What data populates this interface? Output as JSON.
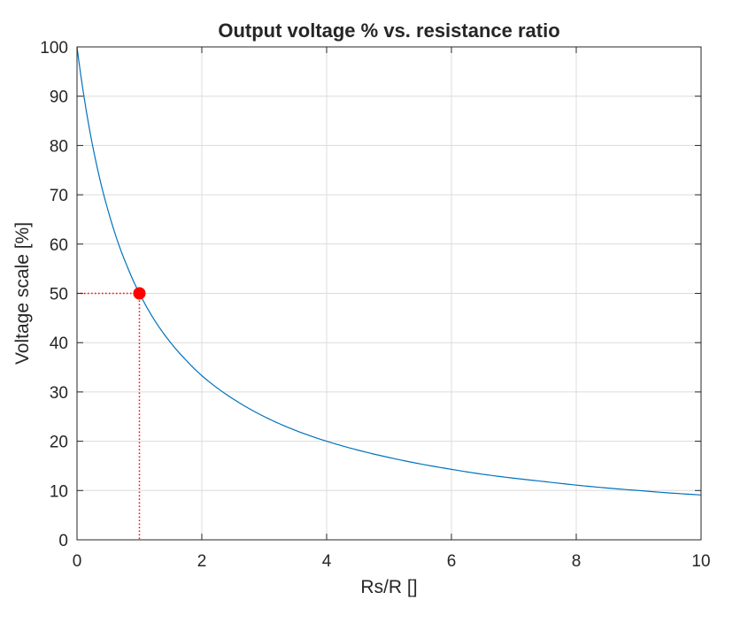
{
  "chart_data": {
    "type": "line",
    "title": "Output voltage % vs. resistance ratio",
    "xlabel": "Rs/R []",
    "ylabel": "Voltage scale [%]",
    "xlim": [
      0,
      10
    ],
    "ylim": [
      0,
      100
    ],
    "grid": true,
    "x_ticks": [
      "0",
      "2",
      "4",
      "6",
      "8",
      "10"
    ],
    "y_ticks": [
      "0",
      "10",
      "20",
      "30",
      "40",
      "50",
      "60",
      "70",
      "80",
      "90",
      "100"
    ],
    "series": [
      {
        "color": "#0072BD",
        "x": [
          0,
          0.1,
          0.2,
          0.3,
          0.4,
          0.5,
          0.6,
          0.7,
          0.8,
          0.9,
          1.0,
          1.25,
          1.5,
          1.75,
          2.0,
          2.5,
          3.0,
          3.5,
          4.0,
          4.5,
          5.0,
          5.5,
          6.0,
          6.5,
          7.0,
          7.5,
          8.0,
          8.5,
          9.0,
          9.5,
          10.0
        ],
        "y": [
          100,
          90.9,
          83.3,
          76.9,
          71.4,
          66.7,
          62.5,
          58.8,
          55.6,
          52.6,
          50.0,
          44.4,
          40.0,
          36.4,
          33.3,
          28.6,
          25.0,
          22.2,
          20.0,
          18.2,
          16.7,
          15.4,
          14.3,
          13.3,
          12.5,
          11.8,
          11.1,
          10.5,
          10.0,
          9.5,
          9.1
        ]
      }
    ],
    "highlight_point": {
      "x": 1,
      "y": 50,
      "color": "#FF0000"
    },
    "reference_lines_color": "#FF0000"
  }
}
